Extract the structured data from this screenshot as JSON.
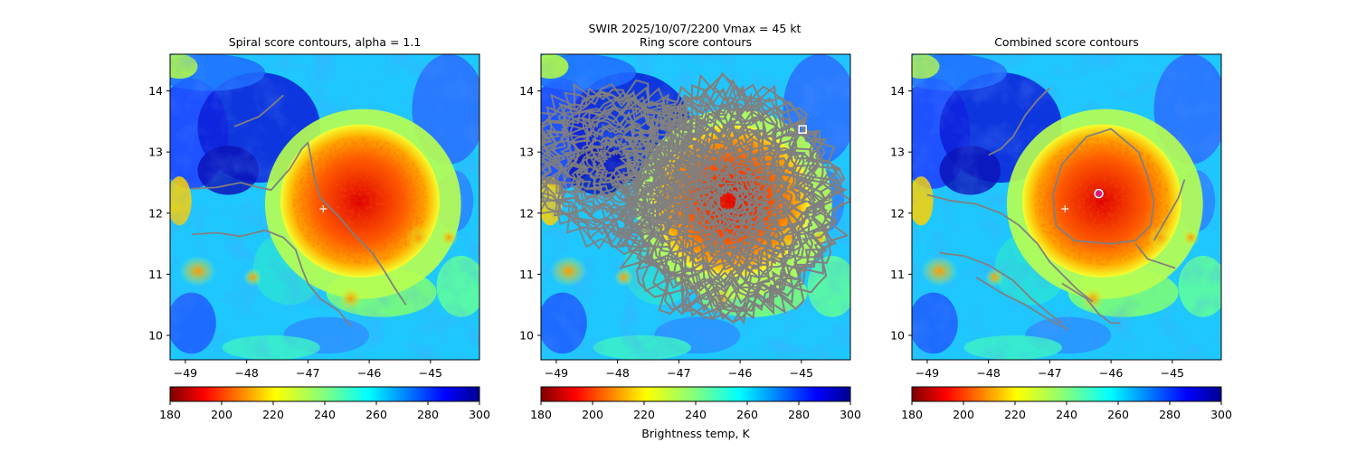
{
  "suptitle": {
    "line1": "SWIR  2025/10/07/2200    Vmax = 45 kt",
    "line2": "Ring score contours"
  },
  "colors": {
    "contour": "#808080",
    "marker": "#ffffff",
    "best_center": "#e0147a"
  },
  "colorbar": {
    "label": "Brightness temp, K",
    "range": [
      180,
      300
    ],
    "ticks": [
      "180",
      "200",
      "220",
      "240",
      "260",
      "280",
      "300"
    ]
  },
  "chart_data": [
    {
      "type": "heatmap",
      "title": "Spiral score contours, alpha =  1.1",
      "xlim": [
        -49.25,
        -44.2
      ],
      "ylim": [
        9.6,
        14.6
      ],
      "xticks": [
        -49,
        -48,
        -47,
        -46,
        -45
      ],
      "xtick_labels": [
        "−49",
        "−48",
        "−47",
        "−46",
        "−45"
      ],
      "yticks": [
        10,
        11,
        12,
        13,
        14
      ],
      "ytick_labels": [
        "10",
        "11",
        "12",
        "13",
        "14"
      ],
      "markers": [
        {
          "kind": "plus",
          "x": -46.75,
          "y": 12.07
        }
      ],
      "contours": [
        [
          [
            -48.2,
            13.42
          ],
          [
            -48.0,
            13.5
          ],
          [
            -47.8,
            13.58
          ],
          [
            -47.6,
            13.75
          ],
          [
            -47.4,
            13.93
          ]
        ],
        [
          [
            -48.9,
            12.4
          ],
          [
            -48.5,
            12.42
          ],
          [
            -48.1,
            12.5
          ],
          [
            -47.8,
            12.42
          ],
          [
            -47.6,
            12.38
          ],
          [
            -47.3,
            12.72
          ],
          [
            -47.1,
            13.05
          ],
          [
            -47.0,
            13.15
          ],
          [
            -46.95,
            12.9
          ],
          [
            -46.9,
            12.6
          ],
          [
            -46.8,
            12.25
          ],
          [
            -46.5,
            11.95
          ],
          [
            -46.25,
            11.65
          ],
          [
            -45.95,
            11.35
          ],
          [
            -45.75,
            11.05
          ],
          [
            -45.6,
            10.8
          ],
          [
            -45.4,
            10.5
          ]
        ],
        [
          [
            -48.9,
            11.65
          ],
          [
            -48.5,
            11.68
          ],
          [
            -48.1,
            11.62
          ],
          [
            -47.7,
            11.72
          ],
          [
            -47.4,
            11.6
          ],
          [
            -47.2,
            11.4
          ],
          [
            -47.1,
            11.1
          ],
          [
            -47.0,
            10.85
          ],
          [
            -46.8,
            10.6
          ],
          [
            -46.5,
            10.4
          ],
          [
            -46.3,
            10.15
          ]
        ]
      ]
    },
    {
      "type": "heatmap",
      "title": "",
      "xlim": [
        -49.25,
        -44.2
      ],
      "ylim": [
        9.6,
        14.6
      ],
      "xticks": [
        -49,
        -48,
        -47,
        -46,
        -45
      ],
      "xtick_labels": [
        "−49",
        "−48",
        "−47",
        "−46",
        "−45"
      ],
      "yticks": [
        10,
        11,
        12,
        13,
        14
      ],
      "ytick_labels": [
        "10",
        "11",
        "12",
        "13",
        "14"
      ],
      "markers": [
        {
          "kind": "square",
          "x": -44.98,
          "y": 13.37
        }
      ],
      "ring_region": {
        "center": [
          -46.2,
          12.2
        ],
        "radius": [
          1.55,
          1.85
        ],
        "extension": [
          -48.0,
          12.8
        ]
      },
      "contours": []
    },
    {
      "type": "heatmap",
      "title": "Combined score contours",
      "xlim": [
        -49.25,
        -44.2
      ],
      "ylim": [
        9.6,
        14.6
      ],
      "xticks": [
        -49,
        -48,
        -47,
        -46,
        -45
      ],
      "xtick_labels": [
        "−49",
        "−48",
        "−47",
        "−46",
        "−45"
      ],
      "yticks": [
        10,
        11,
        12,
        13,
        14
      ],
      "ytick_labels": [
        "10",
        "11",
        "12",
        "13",
        "14"
      ],
      "markers": [
        {
          "kind": "plus",
          "x": -46.75,
          "y": 12.07
        },
        {
          "kind": "circle",
          "x": -46.2,
          "y": 12.32
        }
      ],
      "contours": [
        [
          [
            -48.0,
            12.95
          ],
          [
            -47.8,
            13.05
          ],
          [
            -47.6,
            13.25
          ],
          [
            -47.4,
            13.6
          ],
          [
            -47.2,
            13.85
          ],
          [
            -47.0,
            14.05
          ]
        ],
        [
          [
            -49.0,
            12.3
          ],
          [
            -48.6,
            12.2
          ],
          [
            -48.2,
            12.15
          ],
          [
            -47.8,
            12.0
          ],
          [
            -47.5,
            11.8
          ],
          [
            -47.2,
            11.5
          ],
          [
            -47.0,
            11.2
          ],
          [
            -46.8,
            11.0
          ],
          [
            -46.55,
            10.75
          ],
          [
            -46.3,
            10.55
          ]
        ],
        [
          [
            -48.8,
            11.35
          ],
          [
            -48.4,
            11.3
          ],
          [
            -48.0,
            11.15
          ],
          [
            -47.6,
            10.9
          ],
          [
            -47.3,
            10.6
          ],
          [
            -47.0,
            10.35
          ],
          [
            -46.8,
            10.2
          ]
        ],
        [
          [
            -46.9,
            11.8
          ],
          [
            -46.95,
            12.3
          ],
          [
            -46.8,
            12.8
          ],
          [
            -46.4,
            13.25
          ],
          [
            -46.0,
            13.38
          ],
          [
            -45.55,
            13.0
          ],
          [
            -45.4,
            12.6
          ],
          [
            -45.3,
            12.2
          ],
          [
            -45.35,
            11.8
          ],
          [
            -45.6,
            11.55
          ],
          [
            -46.0,
            11.5
          ],
          [
            -46.6,
            11.55
          ],
          [
            -46.9,
            11.8
          ]
        ],
        [
          [
            -45.3,
            11.55
          ],
          [
            -45.1,
            11.9
          ],
          [
            -44.9,
            12.25
          ],
          [
            -44.8,
            12.55
          ]
        ],
        [
          [
            -45.6,
            11.5
          ],
          [
            -45.4,
            11.25
          ],
          [
            -45.1,
            11.15
          ],
          [
            -44.95,
            11.1
          ]
        ],
        [
          [
            -48.2,
            10.95
          ],
          [
            -47.8,
            10.7
          ],
          [
            -47.4,
            10.5
          ],
          [
            -47.0,
            10.25
          ],
          [
            -46.7,
            10.1
          ]
        ],
        [
          [
            -46.8,
            10.85
          ],
          [
            -46.4,
            10.6
          ],
          [
            -46.2,
            10.35
          ],
          [
            -46.0,
            10.2
          ],
          [
            -45.85,
            10.2
          ]
        ]
      ]
    }
  ]
}
